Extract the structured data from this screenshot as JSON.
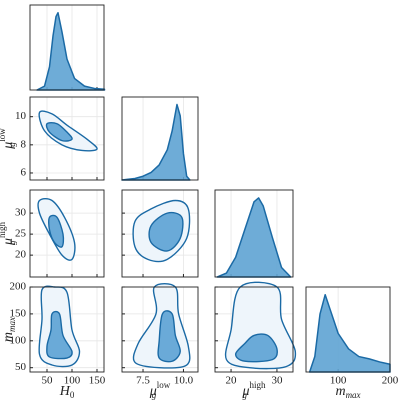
{
  "chart_data": [
    {
      "type": "area",
      "color": "#1b6aa5",
      "fill": "#5ea3d3",
      "x": [
        30,
        45,
        55,
        62,
        68,
        72,
        80,
        90,
        105,
        125,
        145,
        165
      ],
      "values": [
        0,
        0.05,
        0.3,
        0.7,
        0.95,
        1.0,
        0.75,
        0.4,
        0.15,
        0.05,
        0.02,
        0.01
      ],
      "xlim": [
        16,
        164
      ],
      "ylim": [
        0,
        1.1
      ],
      "xticks": [
        50,
        100,
        150
      ]
    },
    {
      "type": "contour",
      "color": "#1b6aa5",
      "xlim": [
        16,
        164
      ],
      "ylim": [
        5.5,
        11.4
      ],
      "xticks": [
        50,
        100,
        150
      ],
      "yticks": [
        6,
        8,
        10
      ],
      "ylabel": {
        "base": "μ",
        "sub": "g",
        "sup": "low"
      },
      "contours": [
        {
          "fill": "#eef5fb",
          "x": [
            35,
            60,
            90,
            130,
            150,
            120,
            80,
            45
          ],
          "y": [
            10.3,
            10.2,
            9.4,
            8.4,
            7.7,
            7.6,
            8.0,
            9.0
          ]
        },
        {
          "fill": "#6aaad8",
          "x": [
            50,
            70,
            90,
            100,
            80,
            55
          ],
          "y": [
            9.5,
            9.5,
            8.9,
            8.4,
            8.3,
            8.9
          ]
        }
      ]
    },
    {
      "type": "area",
      "color": "#1b6aa5",
      "fill": "#5ea3d3",
      "x": [
        6.2,
        7,
        7.5,
        8,
        8.5,
        9,
        9.3,
        9.6,
        9.8,
        10,
        10.2,
        10.4
      ],
      "values": [
        0,
        0.02,
        0.05,
        0.1,
        0.2,
        0.4,
        0.65,
        1.0,
        0.85,
        0.35,
        0.05,
        0
      ],
      "xlim": [
        6.2,
        10.9
      ],
      "ylim": [
        0,
        1.1
      ],
      "xticks": [
        7.5,
        {
          "value": 10,
          "label": "10.0"
        }
      ]
    },
    {
      "type": "contour",
      "color": "#1b6aa5",
      "xlim": [
        16,
        164
      ],
      "ylim": [
        14.8,
        35.5
      ],
      "xticks": [
        50,
        100,
        150
      ],
      "yticks": [
        20,
        25,
        30
      ],
      "ylabel": {
        "base": "μ",
        "sub": "g",
        "sup": "high"
      },
      "contours": [
        {
          "fill": "#eef5fb",
          "x": [
            35,
            60,
            85,
            105,
            100,
            80,
            55,
            35
          ],
          "y": [
            33,
            33,
            29,
            23,
            19,
            20,
            25,
            30
          ]
        },
        {
          "fill": "#6aaad8",
          "x": [
            55,
            70,
            82,
            80,
            65,
            55
          ],
          "y": [
            29,
            29,
            25,
            22,
            23,
            26
          ]
        }
      ]
    },
    {
      "type": "contour",
      "color": "#1b6aa5",
      "xlim": [
        6.2,
        10.9
      ],
      "ylim": [
        14.8,
        35.5
      ],
      "xticks": [
        7.5,
        {
          "value": 10,
          "label": "10.0"
        }
      ],
      "yticks": [
        20,
        25,
        30
      ],
      "contours": [
        {
          "fill": "#eef5fb",
          "x": [
            7.0,
            7.0,
            8.0,
            9.5,
            10.3,
            10.2,
            9.0,
            7.8
          ],
          "y": [
            22,
            28,
            31,
            33,
            31,
            24,
            19,
            19
          ]
        },
        {
          "fill": "#6aaad8",
          "x": [
            8.0,
            8.0,
            9.0,
            9.9,
            9.8,
            9.0
          ],
          "y": [
            23,
            27,
            30,
            29,
            24,
            21
          ]
        }
      ]
    },
    {
      "type": "area",
      "color": "#1b6aa5",
      "fill": "#5ea3d3",
      "x": [
        17,
        19,
        21,
        23,
        25,
        26,
        27,
        29,
        31,
        33
      ],
      "values": [
        0,
        0.05,
        0.25,
        0.6,
        0.95,
        1.0,
        0.9,
        0.5,
        0.12,
        0
      ],
      "xlim": [
        16.5,
        33.5
      ],
      "ylim": [
        0,
        1.1
      ],
      "xticks": [
        20,
        30
      ]
    },
    {
      "type": "contour",
      "color": "#1b6aa5",
      "xlim": [
        16,
        164
      ],
      "ylim": [
        42,
        200
      ],
      "xticks": [
        50,
        100,
        150
      ],
      "yticks": [
        50,
        100,
        150,
        200
      ],
      "ylabel": {
        "base": "m",
        "sub": "max"
      },
      "xlabel": {
        "base": "H",
        "sub": "0"
      },
      "contours": [
        {
          "fill": "#eef5fb",
          "x": [
            40,
            65,
            90,
            100,
            115,
            100,
            60,
            35,
            40
          ],
          "y": [
            195,
            200,
            190,
            120,
            80,
            55,
            55,
            75,
            140
          ]
        },
        {
          "fill": "#6aaad8",
          "x": [
            60,
            75,
            82,
            100,
            90,
            55,
            50,
            58
          ],
          "y": [
            150,
            150,
            110,
            80,
            68,
            70,
            90,
            120
          ]
        }
      ]
    },
    {
      "type": "contour",
      "color": "#1b6aa5",
      "xlim": [
        6.2,
        10.9
      ],
      "ylim": [
        42,
        200
      ],
      "xticks": [
        7.5,
        {
          "value": 10,
          "label": "10.0"
        }
      ],
      "yticks": [
        50,
        100,
        150,
        200
      ],
      "xlabel": {
        "base": "μ",
        "sub": "g",
        "sup": "low"
      },
      "contours": [
        {
          "fill": "#eef5fb",
          "x": [
            8.2,
            9.5,
            9.7,
            10.3,
            10.2,
            8.5,
            7.0,
            7.2,
            8.3
          ],
          "y": [
            200,
            200,
            150,
            90,
            55,
            50,
            60,
            95,
            150
          ]
        },
        {
          "fill": "#6aaad8",
          "x": [
            8.7,
            9.3,
            9.5,
            9.8,
            9.3,
            8.5,
            8.5
          ],
          "y": [
            150,
            150,
            110,
            80,
            62,
            68,
            100
          ]
        }
      ]
    },
    {
      "type": "contour",
      "color": "#1b6aa5",
      "xlim": [
        16.5,
        33.5
      ],
      "ylim": [
        42,
        200
      ],
      "xticks": [
        20,
        30
      ],
      "yticks": [
        50,
        100,
        150,
        200
      ],
      "xlabel": {
        "base": "μ",
        "sub": "g",
        "sup": "high"
      },
      "contours": [
        {
          "fill": "#eef5fb",
          "x": [
            22,
            30,
            31,
            34,
            32,
            24,
            19,
            20
          ],
          "y": [
            200,
            200,
            140,
            80,
            52,
            50,
            65,
            120
          ]
        },
        {
          "fill": "#6aaad8",
          "x": [
            25,
            28,
            30,
            29,
            23,
            21,
            23
          ],
          "y": [
            110,
            110,
            85,
            65,
            62,
            75,
            95
          ]
        }
      ]
    },
    {
      "type": "area",
      "color": "#1b6aa5",
      "fill": "#5ea3d3",
      "x": [
        45,
        55,
        65,
        75,
        85,
        100,
        120,
        140,
        160,
        180,
        200
      ],
      "values": [
        0,
        0.2,
        0.75,
        1.0,
        0.8,
        0.5,
        0.3,
        0.2,
        0.17,
        0.13,
        0.1
      ],
      "xlim": [
        38,
        200
      ],
      "ylim": [
        0,
        1.1
      ],
      "xticks": [
        100,
        200
      ],
      "xlabel": {
        "base": "m",
        "sub": "max"
      }
    }
  ]
}
